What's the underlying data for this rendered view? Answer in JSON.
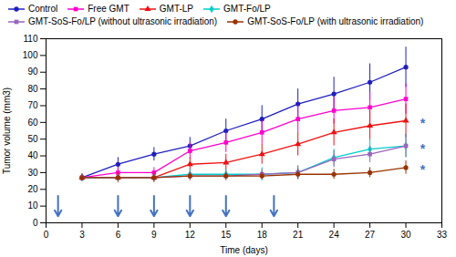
{
  "chart_data": {
    "type": "line",
    "x": [
      3,
      6,
      9,
      12,
      15,
      18,
      21,
      24,
      27,
      30
    ],
    "series": [
      {
        "name": "Control",
        "color": "#1f1fbf",
        "marker": "circle",
        "line_style": "solid",
        "values": [
          27,
          35,
          41,
          46,
          55,
          62,
          71,
          77,
          84,
          93
        ],
        "errors": [
          2,
          4,
          4,
          5,
          7,
          8,
          9,
          10,
          11,
          12
        ]
      },
      {
        "name": "Free GMT",
        "color": "#ff00cc",
        "marker": "square",
        "line_style": "solid",
        "values": [
          27,
          30,
          30,
          43,
          48,
          54,
          62,
          67,
          69,
          74
        ],
        "errors": [
          2,
          3,
          3,
          5,
          6,
          7,
          8,
          8,
          9,
          9
        ]
      },
      {
        "name": "GMT-LP",
        "color": "#ee1111",
        "marker": "triangle",
        "line_style": "solid",
        "values": [
          27,
          27,
          27,
          35,
          36,
          41,
          47,
          54,
          58,
          61
        ],
        "errors": [
          2,
          3,
          3,
          4,
          5,
          6,
          7,
          8,
          9,
          10
        ]
      },
      {
        "name": "GMT-Fo/LP",
        "color": "#00cccc",
        "marker": "diamond",
        "line_style": "solid",
        "values": [
          27,
          27,
          27,
          29,
          29,
          29,
          30,
          39,
          44,
          46
        ],
        "errors": [
          2,
          2,
          2,
          3,
          3,
          4,
          4,
          5,
          6,
          7
        ]
      },
      {
        "name": "GMT-SoS-Fo/LP (without ultrasonic irradiation)",
        "color": "#9966bb",
        "marker": "square",
        "line_style": "solid",
        "values": [
          27,
          27,
          27,
          28,
          28,
          29,
          30,
          38,
          41,
          46
        ],
        "errors": [
          2,
          2,
          2,
          3,
          3,
          3,
          4,
          5,
          5,
          7
        ]
      },
      {
        "name": "GMT-SoS-Fo/LP (with ultrasonic irradiation)",
        "color": "#993300",
        "marker": "circle",
        "line_style": "solid",
        "values": [
          27,
          27,
          27,
          28,
          28,
          28,
          29,
          29,
          30,
          33
        ],
        "errors": [
          2,
          2,
          2,
          2,
          2,
          2,
          3,
          3,
          3,
          4
        ]
      }
    ],
    "arrows": {
      "x": [
        1,
        6,
        9,
        12,
        15,
        19
      ],
      "y_start": 16,
      "y_end": 4,
      "color": "#4472c4"
    },
    "annotations": [
      {
        "text": "*",
        "x": 31.2,
        "y": 61,
        "color": "#4472c4"
      },
      {
        "text": "*",
        "x": 31.2,
        "y": 46,
        "color": "#4472c4"
      },
      {
        "text": "*",
        "x": 31.2,
        "y": 33,
        "color": "#4472c4"
      }
    ],
    "xlabel": "Time (days)",
    "ylabel": "Tumor volume (mm3)",
    "xlim": [
      0,
      33
    ],
    "ylim": [
      0,
      110
    ],
    "xticks": [
      0,
      3,
      6,
      9,
      12,
      15,
      18,
      21,
      24,
      27,
      30,
      33
    ],
    "yticks": [
      0,
      10,
      20,
      30,
      40,
      50,
      60,
      70,
      80,
      90,
      100,
      110
    ],
    "grid": false,
    "legend": "upper left"
  }
}
